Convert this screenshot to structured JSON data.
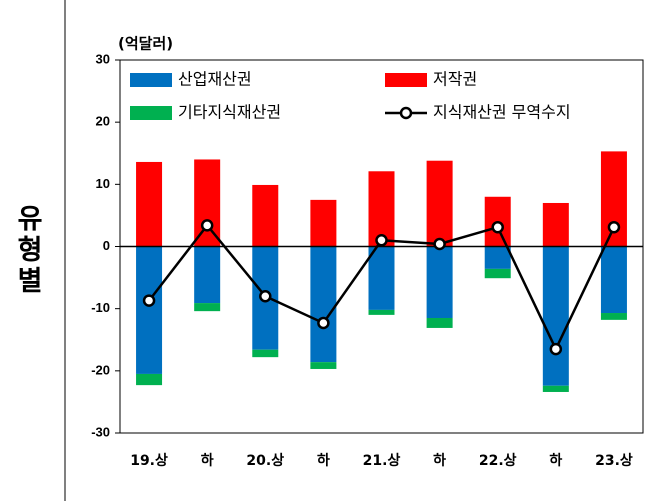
{
  "side_label": "유형별",
  "chart_data": {
    "type": "bar",
    "unit": "(억달러)",
    "categories": [
      "19.상",
      "하",
      "20.상",
      "하",
      "21.상",
      "하",
      "22.상",
      "하",
      "23.상"
    ],
    "ylim": [
      -30,
      30
    ],
    "yticks": [
      30,
      20,
      10,
      0,
      -10,
      -20,
      -30
    ],
    "legend": "top",
    "series": [
      {
        "name": "산업재산권",
        "color": "#0070c0",
        "kind": "bar",
        "values": [
          -20.5,
          -9.1,
          -16.6,
          -18.6,
          -10.2,
          -11.5,
          -3.6,
          -22.4,
          -10.7
        ]
      },
      {
        "name": "저작권",
        "color": "#ff0000",
        "kind": "bar",
        "values": [
          13.6,
          14.0,
          9.9,
          7.5,
          12.1,
          13.8,
          8.0,
          7.0,
          15.3
        ]
      },
      {
        "name": "기타지식재산권",
        "color": "#00b050",
        "kind": "bar",
        "values": [
          -1.8,
          -1.3,
          -1.2,
          -1.1,
          -0.8,
          -1.6,
          -1.5,
          -1.0,
          -1.1
        ]
      },
      {
        "name": "지식재산권 무역수지",
        "color": "#000000",
        "kind": "line",
        "values": [
          -8.7,
          3.4,
          -8.0,
          -12.3,
          1.0,
          0.4,
          3.1,
          -16.5,
          3.1
        ]
      }
    ]
  }
}
